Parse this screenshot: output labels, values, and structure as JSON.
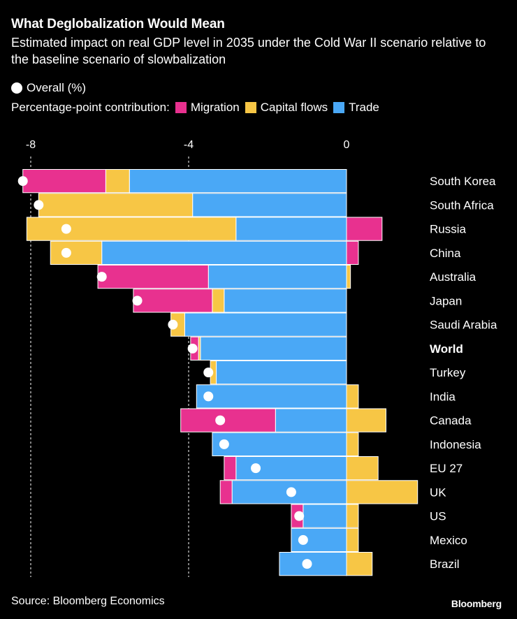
{
  "colors": {
    "background": "#000000",
    "migration": "#e8318f",
    "capital_flows": "#f7c645",
    "trade": "#4aa8f6",
    "overall": "#ffffff",
    "text": "#ffffff"
  },
  "chart_data": {
    "type": "bar",
    "orientation": "horizontal",
    "stacked": true,
    "title": "What Deglobalization Would Mean",
    "subtitle": "Estimated impact on real GDP level in 2035 under the Cold War II scenario relative to the baseline scenario of slowbalization",
    "legend": {
      "overall_label": "Overall (%)",
      "contribution_prefix": "Percentage-point contribution:",
      "placement": "top-left"
    },
    "x_axis": {
      "range": [
        -8.5,
        1.8
      ],
      "ticks": [
        -8,
        -4,
        0
      ],
      "tick_labels": [
        "-8",
        "-4",
        "0"
      ],
      "gridlines": "dashed at -8 and -4"
    },
    "categories": [
      "South Korea",
      "South Africa",
      "Russia",
      "China",
      "Australia",
      "Japan",
      "Saudi Arabia",
      "World",
      "Turkey",
      "India",
      "Canada",
      "Indonesia",
      "EU 27",
      "UK",
      "US",
      "Mexico",
      "Brazil"
    ],
    "highlighted_category": "World",
    "series": [
      {
        "name": "Migration",
        "key": "migration",
        "values": [
          -2.1,
          0.0,
          0.9,
          0.3,
          -2.8,
          -2.0,
          0.0,
          -0.2,
          0.0,
          0.0,
          -2.4,
          0.0,
          -0.3,
          -0.3,
          -0.3,
          0.0,
          0.0
        ]
      },
      {
        "name": "Capital flows",
        "key": "capital_flows",
        "values": [
          -0.6,
          -3.9,
          -5.3,
          -1.3,
          0.1,
          -0.3,
          -0.35,
          -0.05,
          -0.15,
          0.3,
          1.0,
          0.3,
          0.8,
          1.8,
          0.3,
          0.3,
          0.65
        ]
      },
      {
        "name": "Trade",
        "key": "trade",
        "values": [
          -5.5,
          -3.9,
          -2.8,
          -6.2,
          -3.5,
          -3.1,
          -4.1,
          -3.7,
          -3.3,
          -3.8,
          -1.8,
          -3.4,
          -2.8,
          -2.9,
          -1.1,
          -1.4,
          -1.7
        ]
      }
    ],
    "overall": [
      -8.2,
      -7.8,
      -7.1,
      -7.1,
      -6.2,
      -5.3,
      -4.4,
      -3.9,
      -3.5,
      -3.5,
      -3.2,
      -3.1,
      -2.3,
      -1.4,
      -1.2,
      -1.1,
      -1.0
    ]
  },
  "footer": {
    "source": "Source: Bloomberg Economics",
    "brand": "Bloomberg"
  }
}
